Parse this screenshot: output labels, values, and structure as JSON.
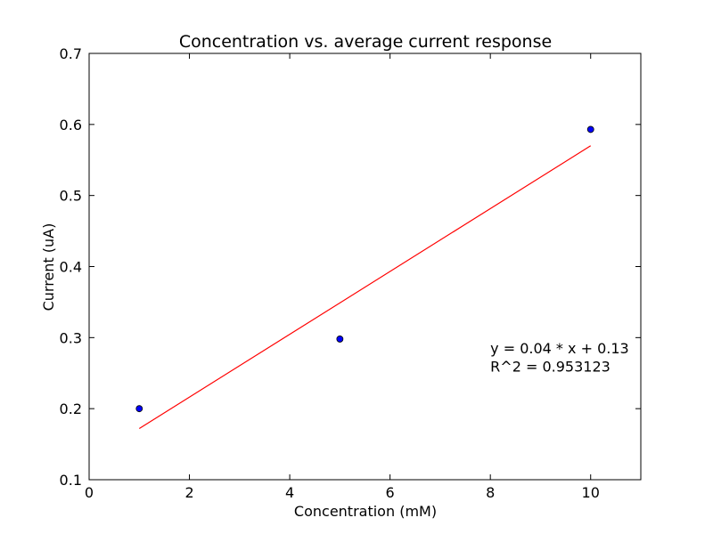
{
  "chart_data": {
    "type": "scatter",
    "title": "Concentration vs. average current response",
    "xlabel": "Concentration (mM)",
    "ylabel": "Current (uA)",
    "xlim": [
      0,
      11
    ],
    "ylim": [
      0.1,
      0.7
    ],
    "xticks": [
      0,
      2,
      4,
      6,
      8,
      10
    ],
    "xtick_labels": [
      "0",
      "2",
      "4",
      "6",
      "8",
      "10"
    ],
    "yticks": [
      0.1,
      0.2,
      0.3,
      0.4,
      0.5,
      0.6,
      0.7
    ],
    "ytick_labels": [
      "0.1",
      "0.2",
      "0.3",
      "0.4",
      "0.5",
      "0.6",
      "0.7"
    ],
    "grid": false,
    "series": [
      {
        "kind": "scatter",
        "x": [
          1,
          5,
          10
        ],
        "y": [
          0.2,
          0.298,
          0.593
        ],
        "color": "#0000ff"
      },
      {
        "kind": "line",
        "x": [
          1,
          10
        ],
        "y": [
          0.172,
          0.57
        ],
        "color": "#ff0000"
      }
    ],
    "annotations": [
      {
        "text": "y = 0.04 * x + 0.13",
        "x": 8.0,
        "y": 0.278
      },
      {
        "text": "R^2 = 0.953123",
        "x": 8.0,
        "y": 0.252
      }
    ]
  }
}
